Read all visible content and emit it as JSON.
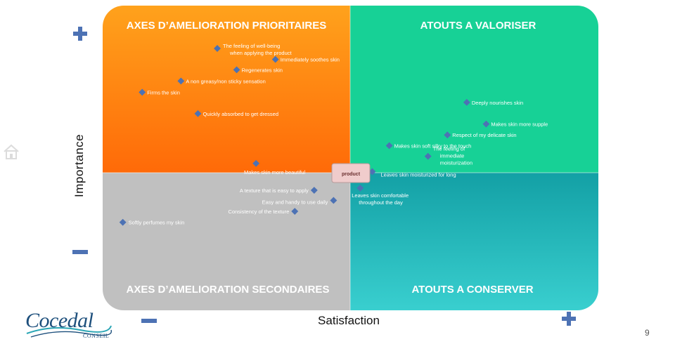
{
  "quadrant_titles": {
    "top_left": "AXES D’AMELIORATION  PRIORITAIRES",
    "top_right": "ATOUTS  A VALORISER",
    "bottom_left": "AXES D’AMELIORATION  SECONDAIRES",
    "bottom_right": "ATOUTS  A CONSERVER"
  },
  "center_label": "product",
  "axis": {
    "y_label": "Importance",
    "x_label": "Satisfaction",
    "low_symbol": "minus",
    "high_symbol": "plus"
  },
  "colors": {
    "top_left_top": "#ffa21c",
    "top_left_bottom": "#ff6a08",
    "top_right": "#17d196",
    "bottom_left": "#c0c0c0",
    "bottom_right_top": "#13a0a5",
    "bottom_right_bottom": "#39cfcf",
    "marker": "#4d72b4",
    "symbol": "#4d72b4",
    "center_box": "#f0cccc"
  },
  "page_number": "9",
  "logo": {
    "name": "Cocedal",
    "sub": "CONSEIL"
  },
  "chart_data": {
    "type": "scatter",
    "xlabel": "Satisfaction",
    "ylabel": "Importance",
    "xlim": [
      0,
      100
    ],
    "ylim": [
      0,
      100
    ],
    "center": [
      50,
      50
    ],
    "points": [
      {
        "label": "The feeling of well-being when applying the product",
        "x": 22.5,
        "y": 90.0
      },
      {
        "label": "Immediately  soothes skin",
        "x": 34.5,
        "y": 86.0
      },
      {
        "label": "Regenerates  skin",
        "x": 26.5,
        "y": 82.2
      },
      {
        "label": "A non greasy/non sticky sensation",
        "x": 15.0,
        "y": 78.1
      },
      {
        "label": "Firms the skin",
        "x": 7.0,
        "y": 74.0
      },
      {
        "label": "Quickly absorbed to get dressed",
        "x": 18.5,
        "y": 66.2
      },
      {
        "label": "Deeply nourishes skin",
        "x": 74.0,
        "y": 70.3
      },
      {
        "label": "Makes skin more supple",
        "x": 78.0,
        "y": 62.4
      },
      {
        "label": "Respect of my delicate  skin",
        "x": 70.0,
        "y": 58.4
      },
      {
        "label": "Makes skin soft  silky to the touch",
        "x": 58.0,
        "y": 54.5
      },
      {
        "label": "The feeling  of immediate moisturization",
        "x": 66.0,
        "y": 50.6
      },
      {
        "label": "Makes skin more  beautiful",
        "x": 30.5,
        "y": 48.0
      },
      {
        "label": "Leaves  skin moisturized for long",
        "x": 54.5,
        "y": 45.0
      },
      {
        "label": "Leaves  skin comfortable throughout the day",
        "x": 52.0,
        "y": 39.0
      },
      {
        "label": "A texture that is easy to apply",
        "x": 42.5,
        "y": 38.2
      },
      {
        "label": "Easy and handy to use daily",
        "x": 46.5,
        "y": 34.5
      },
      {
        "label": "Consistency of the texture",
        "x": 38.5,
        "y": 30.5
      },
      {
        "label": "Softly perfumes my skin",
        "x": 3.0,
        "y": 26.5
      }
    ]
  }
}
